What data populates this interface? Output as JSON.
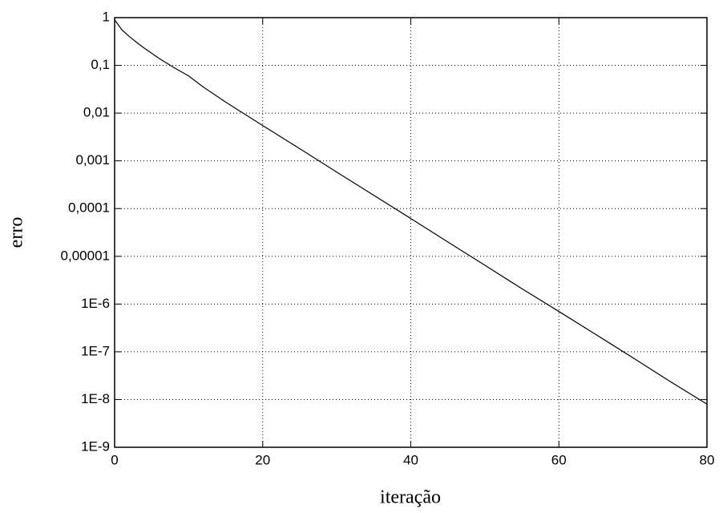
{
  "chart_data": {
    "type": "line",
    "x_label": "iteração",
    "y_label": "erro",
    "x": [
      0,
      1,
      2,
      3,
      4,
      5,
      6,
      8,
      10,
      12,
      15,
      20,
      25,
      30,
      35,
      40,
      45,
      50,
      55,
      60,
      65,
      70,
      75,
      80
    ],
    "series": [
      {
        "name": "erro",
        "color": "#000000",
        "values": [
          0.9,
          0.55,
          0.4,
          0.3,
          0.23,
          0.18,
          0.14,
          0.09,
          0.06,
          0.035,
          0.017,
          0.0055,
          0.0018,
          0.00058,
          0.00019,
          6.2e-05,
          2e-05,
          6.5e-06,
          2.1e-06,
          7e-07,
          2.3e-07,
          7.5e-08,
          2.4e-08,
          8e-09
        ]
      }
    ],
    "xlim": [
      0,
      80
    ],
    "xticks": [
      0,
      20,
      40,
      60,
      80
    ],
    "ylim": [
      1e-09,
      1
    ],
    "yscale": "log",
    "yticks": [
      1,
      {
        "value": 0.1,
        "label": "0,1"
      },
      {
        "value": 0.01,
        "label": "0,01"
      },
      {
        "value": 0.001,
        "label": "0,001"
      },
      {
        "value": 0.0001,
        "label": "0,0001"
      },
      {
        "value": 1e-05,
        "label": "0,00001"
      },
      {
        "value": 1e-06,
        "label": "1E-6"
      },
      {
        "value": 1e-07,
        "label": "1E-7"
      },
      {
        "value": 1e-08,
        "label": "1E-8"
      },
      {
        "value": 1e-09,
        "label": "1E-9"
      }
    ],
    "grid": true
  }
}
